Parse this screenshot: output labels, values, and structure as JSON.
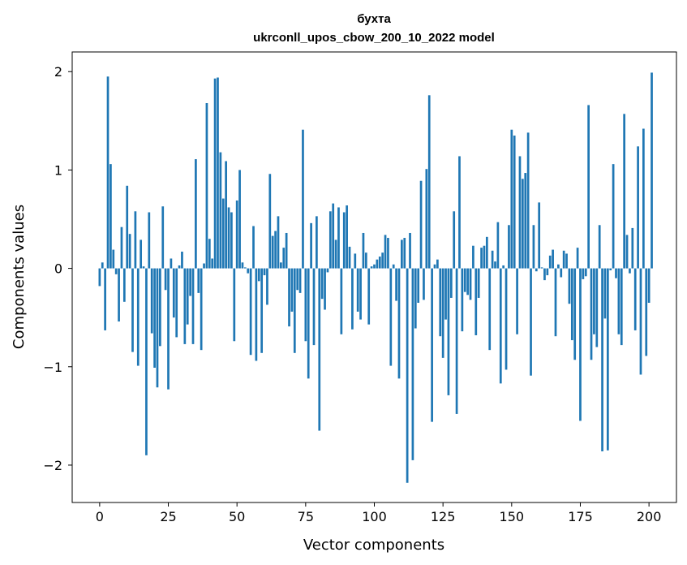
{
  "chart_data": {
    "type": "bar",
    "title_line1": "бухта",
    "title_line2": "ukrconll_upos_cbow_200_10_2022 model",
    "xlabel": "Vector components",
    "ylabel": "Components values",
    "xlim": [
      -10,
      210
    ],
    "ylim": [
      -2.38,
      2.2
    ],
    "x_ticks": [
      0,
      25,
      50,
      75,
      100,
      125,
      150,
      175,
      200
    ],
    "y_ticks": [
      -2,
      -1,
      0,
      1,
      2
    ],
    "y_tick_labels": [
      "−2",
      "−1",
      "0",
      "1",
      "2"
    ],
    "color": "#1f77b4",
    "grid": false,
    "values": [
      -0.18,
      0.06,
      -0.63,
      1.95,
      1.06,
      0.19,
      -0.06,
      -0.54,
      0.42,
      -0.34,
      0.84,
      0.35,
      -0.85,
      0.58,
      -0.99,
      0.29,
      0.02,
      -1.9,
      0.57,
      -0.66,
      -1.01,
      -1.21,
      -0.79,
      0.63,
      -0.22,
      -1.23,
      0.1,
      -0.5,
      -0.7,
      0.03,
      0.17,
      -0.77,
      -0.57,
      -0.28,
      -0.77,
      1.11,
      -0.25,
      -0.83,
      0.05,
      1.68,
      0.3,
      0.1,
      1.93,
      1.94,
      1.18,
      0.71,
      1.09,
      0.62,
      0.57,
      -0.74,
      0.69,
      1.0,
      0.06,
      0.01,
      -0.05,
      -0.88,
      0.43,
      -0.94,
      -0.13,
      -0.86,
      -0.07,
      -0.37,
      0.96,
      0.33,
      0.38,
      0.53,
      0.06,
      0.21,
      0.36,
      -0.59,
      -0.44,
      -0.86,
      -0.22,
      -0.25,
      1.41,
      -0.74,
      -1.12,
      0.46,
      -0.78,
      0.53,
      -1.65,
      -0.31,
      -0.42,
      -0.04,
      0.58,
      0.66,
      0.29,
      0.62,
      -0.67,
      0.57,
      0.64,
      0.22,
      -0.62,
      0.15,
      -0.44,
      -0.52,
      0.36,
      0.16,
      -0.57,
      0.02,
      0.04,
      0.09,
      0.12,
      0.16,
      0.34,
      0.31,
      -0.99,
      0.04,
      -0.33,
      -1.12,
      0.29,
      0.31,
      -2.18,
      0.36,
      -1.95,
      -0.61,
      -0.35,
      0.89,
      -0.32,
      1.01,
      1.76,
      -1.56,
      0.04,
      0.09,
      -0.69,
      -0.91,
      -0.52,
      -1.29,
      -0.3,
      0.58,
      -1.48,
      1.14,
      -0.64,
      -0.24,
      -0.27,
      -0.32,
      0.23,
      -0.68,
      -0.3,
      0.21,
      0.23,
      0.32,
      -0.83,
      0.18,
      0.07,
      0.47,
      -1.17,
      0.03,
      -1.03,
      0.44,
      1.41,
      1.35,
      -0.67,
      1.14,
      0.91,
      0.97,
      1.38,
      -1.09,
      0.44,
      -0.03,
      0.67,
      0.01,
      -0.12,
      -0.07,
      0.13,
      0.19,
      -0.69,
      0.04,
      -0.09,
      0.18,
      0.15,
      -0.36,
      -0.73,
      -0.93,
      0.21,
      -1.55,
      -0.11,
      -0.08,
      1.66,
      -0.93,
      -0.67,
      -0.8,
      0.44,
      -1.86,
      -0.51,
      -1.85,
      -0.02,
      1.06,
      -0.1,
      -0.67,
      -0.78,
      1.57,
      0.34,
      -0.05,
      0.41,
      -0.63,
      1.24,
      -1.08,
      1.42,
      -0.89,
      -0.35,
      1.99
    ]
  }
}
